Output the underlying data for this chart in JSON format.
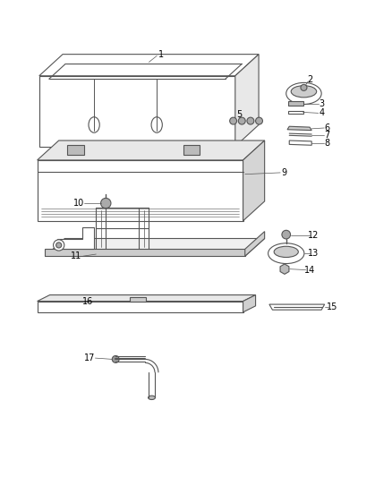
{
  "background_color": "#ffffff",
  "line_color": "#555555",
  "figsize": [
    4.38,
    5.33
  ],
  "dpi": 100
}
